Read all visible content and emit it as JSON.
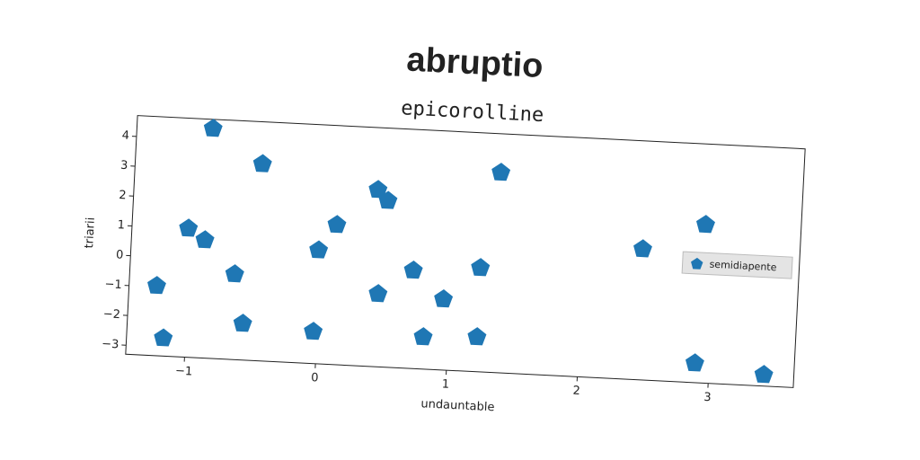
{
  "chart_data": {
    "type": "scatter",
    "title": "abruptio",
    "subtitle": "epicorolline",
    "x_label": "undauntable",
    "y_label": "triarii",
    "series": [
      {
        "name": "semidiapente",
        "color": "#1f77b4",
        "marker": "pentagon",
        "x": [
          -0.87,
          -0.48,
          -1.02,
          -0.89,
          -1.24,
          -1.17,
          -0.65,
          -0.57,
          -0.03,
          -0.02,
          0.11,
          0.41,
          0.49,
          0.45,
          0.71,
          0.81,
          0.95,
          1.22,
          1.22,
          1.34,
          2.45,
          2.92,
          2.89,
          3.42
        ],
        "values": [
          4.39,
          3.29,
          1.01,
          0.65,
          -0.96,
          -2.7,
          -0.44,
          -2.08,
          -2.23,
          0.5,
          1.38,
          2.62,
          2.27,
          -0.86,
          -0.02,
          -2.23,
          -0.93,
          0.18,
          -2.14,
          3.4,
          1.08,
          2.0,
          -2.65,
          -2.92
        ]
      }
    ],
    "xlim": [
      -1.45,
      3.65
    ],
    "ylim": [
      -3.3,
      4.7
    ],
    "xticks": [
      {
        "value": -1,
        "label": "−1"
      },
      0,
      1,
      2,
      3
    ],
    "yticks": [
      {
        "value": -3,
        "label": "−3"
      },
      {
        "value": -2,
        "label": "−2"
      },
      {
        "value": -1,
        "label": "−1"
      },
      0,
      1,
      2,
      3,
      4
    ],
    "grid": false,
    "legend": "center right",
    "rotation": 2.86
  }
}
